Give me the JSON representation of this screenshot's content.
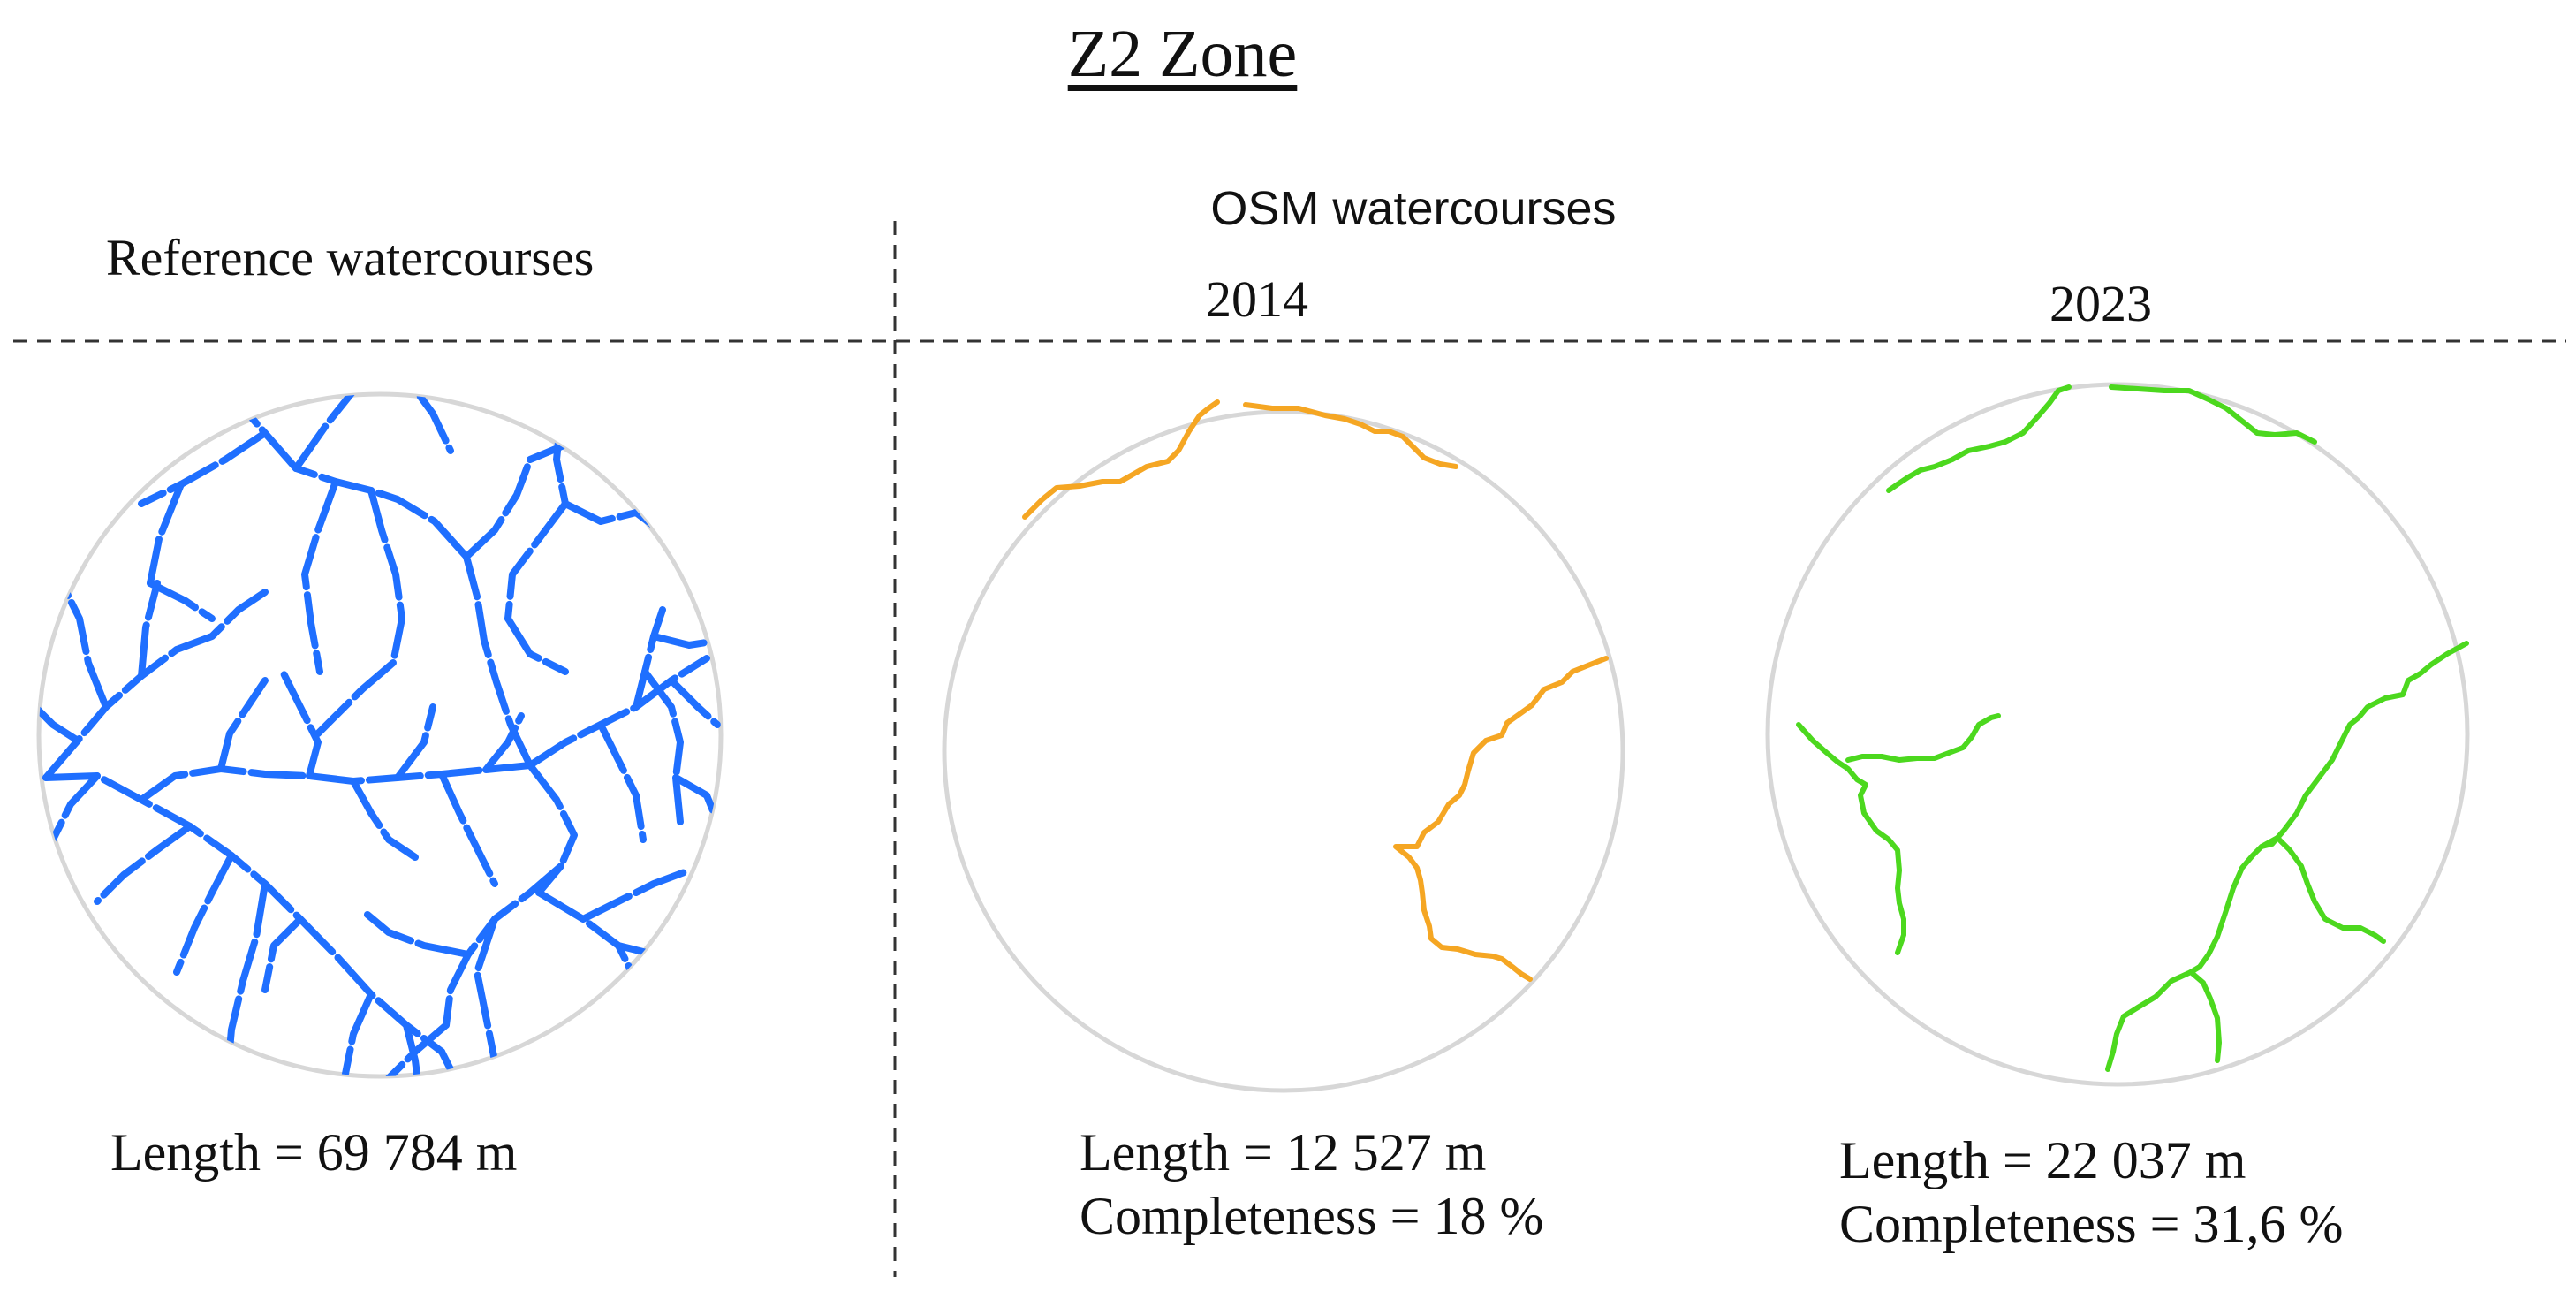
{
  "title": "Z2 Zone",
  "header": {
    "osm_label": "OSM watercourses",
    "reference_label": "Reference watercourses",
    "year_2014": "2014",
    "year_2023": "2023"
  },
  "panels": [
    {
      "id": "reference",
      "color": "#1f6fff",
      "length_text": "Length = 69 784 m"
    },
    {
      "id": "osm-2014",
      "color": "#f5a623",
      "length_text": "Length =  12 527 m",
      "completeness_text": "Completeness = 18 %"
    },
    {
      "id": "osm-2023",
      "color": "#4cd81e",
      "length_text": "Length =  22 037 m",
      "completeness_text": "Completeness = 31,6 %"
    }
  ]
}
